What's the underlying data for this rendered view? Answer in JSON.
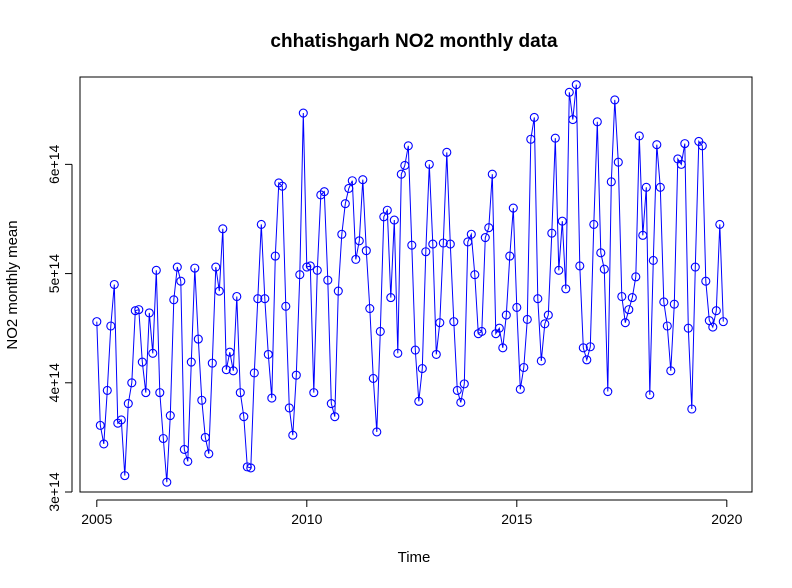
{
  "chart_data": {
    "type": "line",
    "title": "chhatishgarh NO2 monthly data",
    "xlabel": "Time",
    "ylabel": "NO2 monthly mean",
    "xlim": [
      2005,
      2020
    ],
    "ylim": [
      300000000000000.0,
      680000000000000.0
    ],
    "x_ticks": [
      2005,
      2010,
      2015,
      2020
    ],
    "x_tick_labels": [
      "2005",
      "2010",
      "2015",
      "2020"
    ],
    "y_ticks": [
      300000000000000.0,
      400000000000000.0,
      500000000000000.0,
      600000000000000.0
    ],
    "y_tick_labels": [
      "3e+14",
      "4e+14",
      "5e+14",
      "6e+14"
    ],
    "grid": false,
    "series_color": "#0000ff",
    "marker": "open-circle",
    "start_year": 2005,
    "frequency": 12,
    "series": [
      {
        "values": [
          456000000000000.0,
          361000000000000.0,
          344000000000000.0,
          393000000000000.0,
          452000000000000.0,
          490000000000000.0,
          363000000000000.0,
          366000000000000.0,
          315000000000000.0,
          381000000000000.0,
          400000000000000.0,
          466000000000000.0,
          467000000000000.0,
          419000000000000.0,
          391000000000000.0,
          464000000000000.0,
          427000000000000.0,
          503000000000000.0,
          391000000000000.0,
          349000000000000.0,
          309000000000000.0,
          370000000000000.0,
          476000000000000.0,
          506000000000000.0,
          493000000000000.0,
          339000000000000.0,
          328000000000000.0,
          419000000000000.0,
          505000000000000.0,
          440000000000000.0,
          384000000000000.0,
          350000000000000.0,
          335000000000000.0,
          418000000000000.0,
          506000000000000.0,
          484000000000000.0,
          541000000000000.0,
          412000000000000.0,
          428000000000000.0,
          411000000000000.0,
          479000000000000.0,
          391000000000000.0,
          369000000000000.0,
          323000000000000.0,
          322000000000000.0,
          409000000000000.0,
          477000000000000.0,
          545000000000000.0,
          477000000000000.0,
          426000000000000.0,
          386000000000000.0,
          516000000000000.0,
          583000000000000.0,
          580000000000000.0,
          470000000000000.0,
          377000000000000.0,
          352000000000000.0,
          407000000000000.0,
          499000000000000.0,
          647000000000000.0,
          506000000000000.0,
          507000000000000.0,
          391000000000000.0,
          503000000000000.0,
          572000000000000.0,
          575000000000000.0,
          494000000000000.0,
          381000000000000.0,
          369000000000000.0,
          484000000000000.0,
          536000000000000.0,
          564000000000000.0,
          578000000000000.0,
          585000000000000.0,
          513000000000000.0,
          530000000000000.0,
          586000000000000.0,
          521000000000000.0,
          468000000000000.0,
          404000000000000.0,
          355000000000000.0,
          447000000000000.0,
          552000000000000.0,
          558000000000000.0,
          478000000000000.0,
          549000000000000.0,
          427000000000000.0,
          591000000000000.0,
          599000000000000.0,
          617000000000000.0,
          526000000000000.0,
          430000000000000.0,
          383000000000000.0,
          413000000000000.0,
          520000000000000.0,
          600000000000000.0,
          527000000000000.0,
          426000000000000.0,
          455000000000000.0,
          528000000000000.0,
          611000000000000.0,
          527000000000000.0,
          456000000000000.0,
          393000000000000.0,
          382000000000000.0,
          399000000000000.0,
          529000000000000.0,
          536000000000000.0,
          499000000000000.0,
          445000000000000.0,
          447000000000000.0,
          533000000000000.0,
          542000000000000.0,
          591000000000000.0,
          445000000000000.0,
          450000000000000.0,
          432000000000000.0,
          462000000000000.0,
          516000000000000.0,
          560000000000000.0,
          469000000000000.0,
          394000000000000.0,
          414000000000000.0,
          458000000000000.0,
          623000000000000.0,
          643000000000000.0,
          477000000000000.0,
          420000000000000.0,
          454000000000000.0,
          462000000000000.0,
          537000000000000.0,
          624000000000000.0,
          503000000000000.0,
          548000000000000.0,
          486000000000000.0,
          666000000000000.0,
          641000000000000.0,
          673000000000000.0,
          507000000000000.0,
          432000000000000.0,
          421000000000000.0,
          433000000000000.0,
          545000000000000.0,
          639000000000000.0,
          519000000000000.0,
          504000000000000.0,
          392000000000000.0,
          584000000000000.0,
          659000000000000.0,
          602000000000000.0,
          479000000000000.0,
          455000000000000.0,
          467000000000000.0,
          478000000000000.0,
          497000000000000.0,
          626000000000000.0,
          535000000000000.0,
          579000000000000.0,
          389000000000000.0,
          512000000000000.0,
          618000000000000.0,
          579000000000000.0,
          474000000000000.0,
          452000000000000.0,
          411000000000000.0,
          472000000000000.0,
          605000000000000.0,
          600000000000000.0,
          619000000000000.0,
          450000000000000.0,
          376000000000000.0,
          506000000000000.0,
          621000000000000.0,
          617000000000000.0,
          493000000000000.0,
          457000000000000.0,
          451000000000000.0,
          466000000000000.0,
          545000000000000.0,
          456000000000000.0
        ]
      }
    ]
  }
}
